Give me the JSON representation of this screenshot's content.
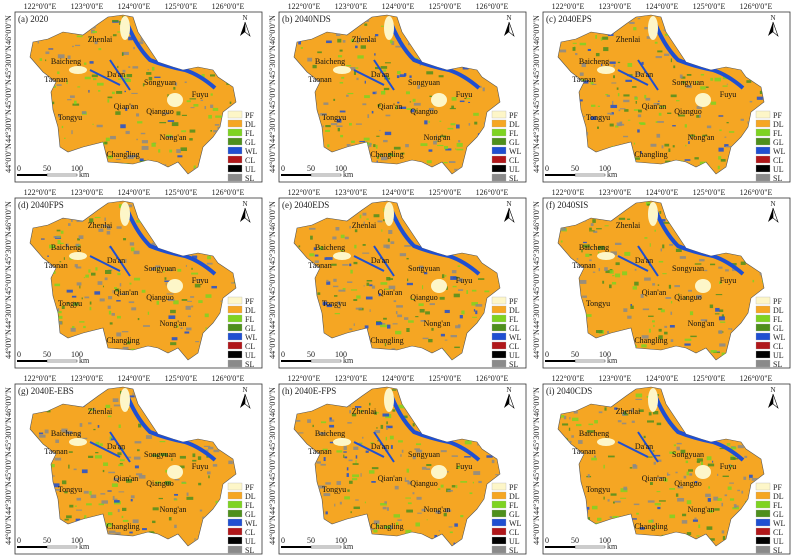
{
  "panels": [
    {
      "label": "(a) 2020"
    },
    {
      "label": "(b) 2040NDS"
    },
    {
      "label": "(c) 2040EPS"
    },
    {
      "label": "(d) 2040FPS"
    },
    {
      "label": "(e) 2040EDS"
    },
    {
      "label": "(f) 2040SIS"
    },
    {
      "label": "(g) 2040E-EBS"
    },
    {
      "label": "(h) 2040E-FPS"
    },
    {
      "label": "(i) 2040CDS"
    }
  ],
  "longitude_ticks": [
    "122°0'0\"E",
    "123°0'0\"E",
    "124°0'0\"E",
    "125°0'0\"E",
    "126°0'0\"E"
  ],
  "latitude_ticks": [
    "46°0'0\"N",
    "45°30'0\"N",
    "45°0'0\"N",
    "44°30'0\"N",
    "44°0'0\"N"
  ],
  "places": [
    "Zhenlai",
    "Baicheng",
    "Taonan",
    "Da'an",
    "Songyuan",
    "Fuyu",
    "Qian'an",
    "Qianguo",
    "Tongyu",
    "Nong'an",
    "Changling"
  ],
  "north_arrow": "N",
  "scale_bar": {
    "ticks": [
      "0",
      "50",
      "100"
    ],
    "unit": "km"
  },
  "legend": [
    {
      "code": "PF",
      "color": "#fdf6c8"
    },
    {
      "code": "DL",
      "color": "#f5a623"
    },
    {
      "code": "FL",
      "color": "#7ed321"
    },
    {
      "code": "GL",
      "color": "#4e8f1c"
    },
    {
      "code": "WL",
      "color": "#1f4fd1"
    },
    {
      "code": "CL",
      "color": "#b0171a"
    },
    {
      "code": "UL",
      "color": "#000000"
    },
    {
      "code": "SL",
      "color": "#8a8a8a"
    }
  ]
}
